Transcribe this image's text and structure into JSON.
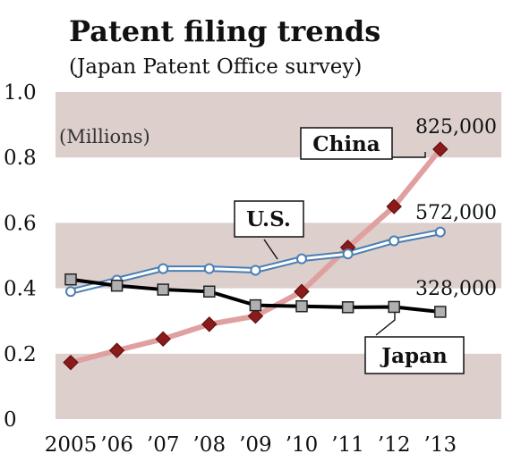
{
  "chart_data": {
    "type": "line",
    "title": "Patent filing trends",
    "subtitle": "(Japan Patent Office survey)",
    "unit_label": "(Millions)",
    "x": [
      "2005",
      "’06",
      "’07",
      "’08",
      "’09",
      "’10",
      "’11",
      "’12",
      "’13"
    ],
    "ylim": [
      0,
      1.0
    ],
    "y_ticks": [
      "0",
      "0.2",
      "0.4",
      "0.6",
      "0.8",
      "1.0"
    ],
    "y_tick_values": [
      0,
      0.2,
      0.4,
      0.6,
      0.8,
      1.0
    ],
    "grid": "alternating shaded bands",
    "series": [
      {
        "name": "China",
        "color": "#e0a0a0",
        "marker": "diamond",
        "marker_color": "#8b1a1a",
        "values": [
          0.173,
          0.21,
          0.245,
          0.29,
          0.315,
          0.39,
          0.525,
          0.65,
          0.825
        ],
        "end_label": "825,000"
      },
      {
        "name": "U.S.",
        "color": "#4a7fb5",
        "marker": "circle",
        "marker_color": "#ffffff",
        "values": [
          0.39,
          0.425,
          0.46,
          0.46,
          0.455,
          0.49,
          0.505,
          0.545,
          0.572
        ],
        "end_label": "572,000"
      },
      {
        "name": "Japan",
        "color": "#000000",
        "marker": "square",
        "marker_color": "#b0b0b0",
        "values": [
          0.427,
          0.408,
          0.396,
          0.39,
          0.348,
          0.345,
          0.342,
          0.343,
          0.328
        ],
        "end_label": "328,000"
      }
    ]
  }
}
